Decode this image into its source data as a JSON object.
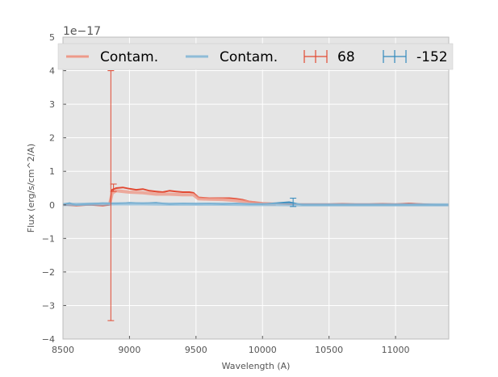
{
  "chart_data": {
    "type": "line",
    "title": "",
    "xlabel": "Wavelength (A)",
    "ylabel": "Flux (erg/s/cm^2/A)",
    "y_offset_label": "1e−17",
    "y_scale": 1e-17,
    "xlim": [
      8500,
      11400
    ],
    "ylim": [
      -4,
      5
    ],
    "xticks": [
      8500,
      9000,
      9500,
      10000,
      10500,
      11000
    ],
    "yticks": [
      -4,
      -3,
      -2,
      -1,
      0,
      1,
      2,
      3,
      4,
      5
    ],
    "xtick_labels": [
      "8500",
      "9000",
      "9500",
      "10000",
      "10500",
      "11000"
    ],
    "ytick_labels": [
      "−4",
      "−3",
      "−2",
      "−1",
      "0",
      "1",
      "2",
      "3",
      "4",
      "5"
    ],
    "grid": true,
    "legend_position": "top",
    "colors": {
      "background": "#e5e5e5",
      "grid": "#ffffff",
      "red": "#e24a33",
      "blue": "#348abd",
      "red_light": "#ee9a8a",
      "blue_light": "#8fbcd8"
    },
    "legend": [
      {
        "label": "Contam.",
        "kind": "line",
        "color": "#ee9a8a"
      },
      {
        "label": "Contam.",
        "kind": "line",
        "color": "#8fbcd8"
      },
      {
        "label": "68",
        "kind": "errorbar",
        "color": "#e24a33"
      },
      {
        "label": "-152",
        "kind": "errorbar",
        "color": "#348abd"
      }
    ],
    "series": [
      {
        "name": "68",
        "color": "#e24a33",
        "x": [
          8500,
          8600,
          8700,
          8800,
          8850,
          8870,
          8900,
          8950,
          9000,
          9050,
          9100,
          9150,
          9200,
          9250,
          9300,
          9350,
          9400,
          9450,
          9480,
          9520,
          9600,
          9700,
          9750,
          9800,
          9850,
          9900,
          9950,
          10000,
          10100,
          10200,
          10300,
          10400,
          10500,
          10600,
          10700,
          10800,
          10900,
          11000,
          11100,
          11200,
          11300,
          11400
        ],
        "y": [
          0.0,
          -0.02,
          0.0,
          -0.02,
          0.0,
          0.45,
          0.5,
          0.52,
          0.48,
          0.45,
          0.47,
          0.42,
          0.4,
          0.38,
          0.42,
          0.4,
          0.38,
          0.38,
          0.36,
          0.22,
          0.2,
          0.2,
          0.2,
          0.18,
          0.15,
          0.1,
          0.08,
          0.05,
          0.04,
          0.02,
          0.02,
          0.02,
          0.02,
          0.03,
          0.02,
          0.02,
          0.03,
          0.02,
          0.04,
          0.02,
          0.0,
          0.0
        ]
      },
      {
        "name": "Contam.",
        "color": "#ee9a8a",
        "x": [
          8850,
          8870,
          8900,
          9000,
          9100,
          9200,
          9300,
          9400,
          9480,
          9520,
          9600,
          9700,
          9800,
          9900,
          10000,
          10100
        ],
        "y": [
          0.0,
          0.35,
          0.42,
          0.38,
          0.36,
          0.32,
          0.32,
          0.3,
          0.3,
          0.18,
          0.17,
          0.16,
          0.13,
          0.08,
          0.04,
          0.02
        ]
      },
      {
        "name": "-152",
        "color": "#348abd",
        "x": [
          8500,
          8550,
          8600,
          8700,
          8800,
          8900,
          9000,
          9100,
          9200,
          9300,
          9400,
          9500,
          9600,
          9700,
          9800,
          9900,
          10000,
          10100,
          10200,
          10300,
          10400,
          10500,
          10600,
          10700,
          10800,
          10900,
          11000,
          11100,
          11200,
          11300,
          11400
        ],
        "y": [
          0.02,
          0.05,
          0.0,
          0.03,
          0.05,
          0.04,
          0.06,
          0.05,
          0.06,
          0.02,
          0.04,
          0.03,
          0.04,
          0.02,
          0.04,
          0.02,
          0.02,
          0.05,
          0.08,
          0.0,
          0.0,
          0.0,
          0.0,
          0.0,
          0.0,
          0.0,
          0.0,
          0.0,
          0.0,
          0.0,
          0.0
        ]
      },
      {
        "name": "Contam.",
        "color": "#8fbcd8",
        "x": [
          8500,
          8700,
          8900,
          9100,
          9300,
          9500,
          9700,
          9900,
          10100,
          10300,
          10500,
          10700,
          10900,
          11100,
          11300,
          11400
        ],
        "y": [
          0.01,
          0.02,
          0.03,
          0.03,
          0.02,
          0.02,
          0.02,
          0.01,
          0.01,
          0.0,
          0.0,
          0.0,
          0.0,
          0.0,
          0.0,
          0.0
        ]
      }
    ],
    "errorbars": [
      {
        "series": "68",
        "x": 8860,
        "y": 0.1,
        "low": -3.45,
        "high": 4.0
      },
      {
        "series": "68",
        "x": 8880,
        "y": 0.5,
        "low": 0.4,
        "high": 0.62
      },
      {
        "series": "-152",
        "x": 10230,
        "y": 0.05,
        "low": -0.05,
        "high": 0.2
      }
    ]
  }
}
